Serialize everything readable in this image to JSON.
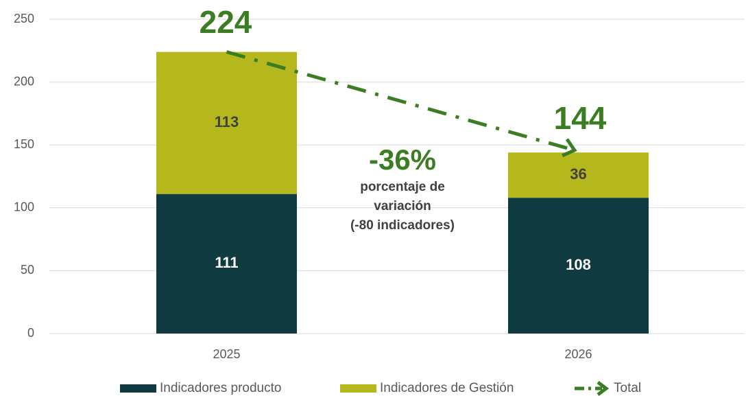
{
  "chart_data": {
    "type": "bar",
    "stacked": true,
    "categories": [
      "2025",
      "2026"
    ],
    "series": [
      {
        "name": "Indicadores producto",
        "color": "#0e3a40",
        "values": [
          111,
          108
        ]
      },
      {
        "name": "Indicadores de Gestión",
        "color": "#b5b81c",
        "values": [
          113,
          36
        ]
      },
      {
        "name": "Total",
        "type": "line",
        "color": "#3b7d23",
        "values": [
          224,
          144
        ]
      }
    ],
    "ylim": [
      0,
      250
    ],
    "yticks": [
      0,
      50,
      100,
      150,
      200,
      250
    ],
    "grid": true,
    "annotation": "-36%",
    "annotation_text": [
      "porcentaje de",
      "variación",
      "(-80 indicadores)"
    ],
    "legend": "bottom"
  }
}
